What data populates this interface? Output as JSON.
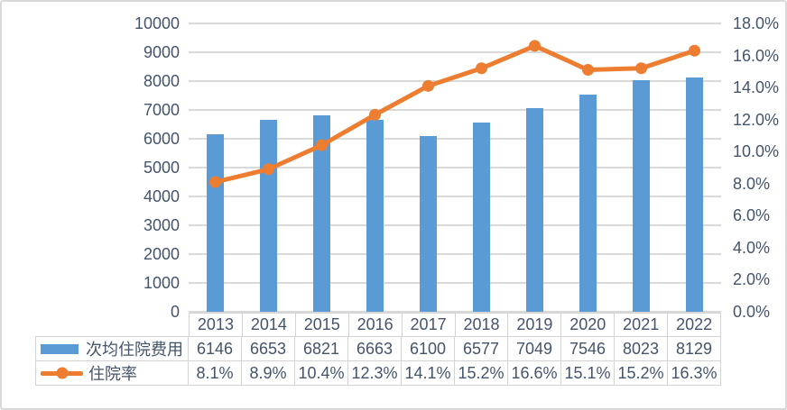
{
  "chart_data": {
    "type": "combo-bar-line",
    "categories": [
      "2013",
      "2014",
      "2015",
      "2016",
      "2017",
      "2018",
      "2019",
      "2020",
      "2021",
      "2022"
    ],
    "series": [
      {
        "name": "次均住院费用",
        "type": "bar",
        "axis": "left",
        "color": "#5B9BD5",
        "values": [
          6146,
          6653,
          6821,
          6663,
          6100,
          6577,
          7049,
          7546,
          8023,
          8129
        ],
        "value_labels": [
          "6146",
          "6653",
          "6821",
          "6663",
          "6100",
          "6577",
          "7049",
          "7546",
          "8023",
          "8129"
        ]
      },
      {
        "name": "住院率",
        "type": "line",
        "axis": "right",
        "color": "#ED7D31",
        "values": [
          8.1,
          8.9,
          10.4,
          12.3,
          14.1,
          15.2,
          16.6,
          15.1,
          15.2,
          16.3
        ],
        "value_labels": [
          "8.1%",
          "8.9%",
          "10.4%",
          "12.3%",
          "14.1%",
          "15.2%",
          "16.6%",
          "15.1%",
          "15.2%",
          "16.3%"
        ]
      }
    ],
    "left_axis": {
      "min": 0,
      "max": 10000,
      "step": 1000,
      "ticks": [
        {
          "value": 0,
          "label": "0"
        },
        {
          "value": 1000,
          "label": "1000"
        },
        {
          "value": 2000,
          "label": "2000"
        },
        {
          "value": 3000,
          "label": "3000"
        },
        {
          "value": 4000,
          "label": "4000"
        },
        {
          "value": 5000,
          "label": "5000"
        },
        {
          "value": 6000,
          "label": "6000"
        },
        {
          "value": 7000,
          "label": "7000"
        },
        {
          "value": 8000,
          "label": "8000"
        },
        {
          "value": 9000,
          "label": "9000"
        },
        {
          "value": 10000,
          "label": "10000"
        }
      ]
    },
    "right_axis": {
      "min": 0,
      "max": 18,
      "step": 2,
      "ticks": [
        {
          "value": 0,
          "label": "0.0%"
        },
        {
          "value": 2,
          "label": "2.0%"
        },
        {
          "value": 4,
          "label": "4.0%"
        },
        {
          "value": 6,
          "label": "6.0%"
        },
        {
          "value": 8,
          "label": "8.0%"
        },
        {
          "value": 10,
          "label": "10.0%"
        },
        {
          "value": 12,
          "label": "12.0%"
        },
        {
          "value": 14,
          "label": "14.0%"
        },
        {
          "value": 16,
          "label": "16.0%"
        },
        {
          "value": 18,
          "label": "18.0%"
        }
      ]
    },
    "grid": true,
    "legend_position": "data-table-left",
    "colors": {
      "background": "#FFFFFF",
      "grid": "#D9D9D9",
      "axis_text": "#44546A",
      "table_border": "#D3D3D3"
    }
  }
}
